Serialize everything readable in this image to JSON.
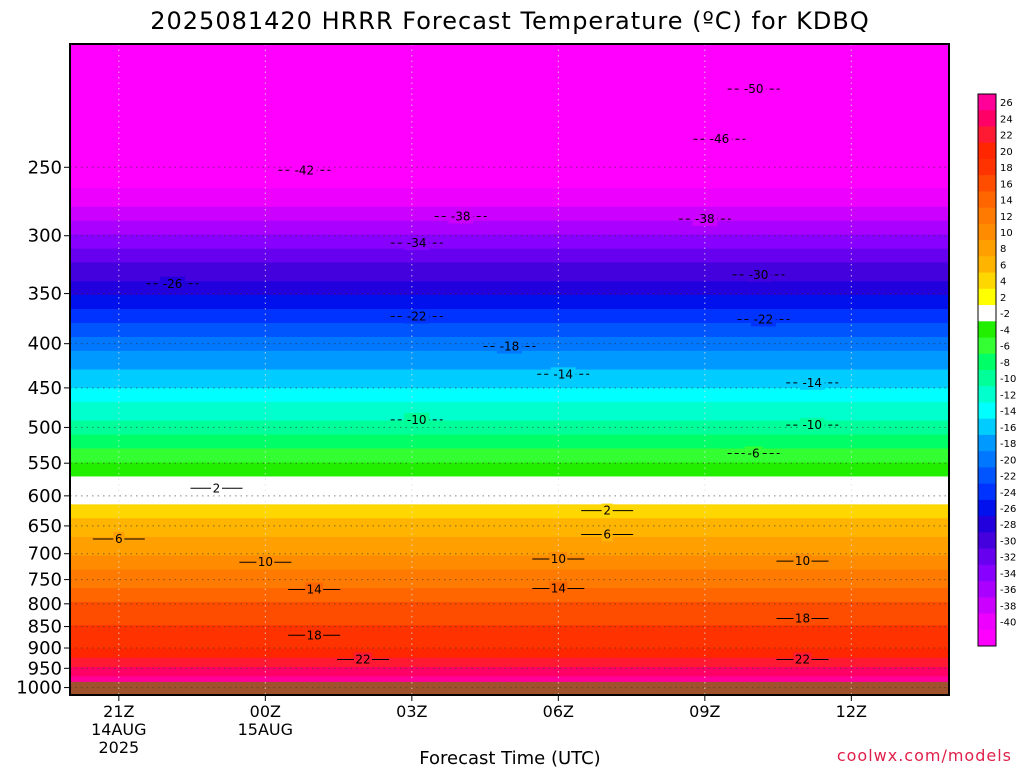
{
  "chart_data": {
    "type": "heatmap",
    "title": "2025081420 HRRR Forecast Temperature (ºC) for KDBQ",
    "xlabel": "Forecast Time (UTC)",
    "ylabel": "",
    "credit": "coolwx.com/models",
    "x_hours": [
      -1,
      17
    ],
    "x_ticks": [
      {
        "hour": 0,
        "label": "21Z",
        "sub1": "14AUG",
        "sub2": "2025"
      },
      {
        "hour": 3,
        "label": "00Z",
        "sub1": "15AUG",
        "sub2": ""
      },
      {
        "hour": 6,
        "label": "03Z",
        "sub1": "",
        "sub2": ""
      },
      {
        "hour": 9,
        "label": "06Z",
        "sub1": "",
        "sub2": ""
      },
      {
        "hour": 12,
        "label": "09Z",
        "sub1": "",
        "sub2": ""
      },
      {
        "hour": 15,
        "label": "12Z",
        "sub1": "",
        "sub2": ""
      }
    ],
    "y_axis": "pressure (hPa), log scale",
    "y_range": [
      1020,
      180
    ],
    "y_ticks": [
      250,
      300,
      350,
      400,
      450,
      500,
      550,
      600,
      650,
      700,
      750,
      800,
      850,
      900,
      950,
      1000
    ],
    "grid": true,
    "surface_pressure": 985,
    "temperature_profile": [
      {
        "p": 975,
        "t": 25
      },
      {
        "p": 950,
        "t": 22
      },
      {
        "p": 900,
        "t": 18
      },
      {
        "p": 850,
        "t": 16
      },
      {
        "p": 800,
        "t": 14
      },
      {
        "p": 750,
        "t": 11
      },
      {
        "p": 700,
        "t": 8
      },
      {
        "p": 650,
        "t": 5
      },
      {
        "p": 600,
        "t": 1
      },
      {
        "p": 550,
        "t": -4
      },
      {
        "p": 500,
        "t": -9
      },
      {
        "p": 450,
        "t": -14
      },
      {
        "p": 400,
        "t": -19
      },
      {
        "p": 350,
        "t": -26
      },
      {
        "p": 300,
        "t": -34
      },
      {
        "p": 250,
        "t": -43
      },
      {
        "p": 200,
        "t": -52
      }
    ],
    "contour_labels": [
      {
        "value": "-50",
        "hour": 13.0,
        "p": 203
      },
      {
        "value": "-46",
        "hour": 12.3,
        "p": 232
      },
      {
        "value": "-42",
        "hour": 3.8,
        "p": 252
      },
      {
        "value": "-38",
        "hour": 7.0,
        "p": 285
      },
      {
        "value": "-38",
        "hour": 12.0,
        "p": 287
      },
      {
        "value": "-34",
        "hour": 6.1,
        "p": 306
      },
      {
        "value": "-30",
        "hour": 13.1,
        "p": 333
      },
      {
        "value": "-26",
        "hour": 1.1,
        "p": 341
      },
      {
        "value": "-22",
        "hour": 6.1,
        "p": 372
      },
      {
        "value": "-22",
        "hour": 13.2,
        "p": 375
      },
      {
        "value": "-18",
        "hour": 8.0,
        "p": 403
      },
      {
        "value": "-14",
        "hour": 9.1,
        "p": 434
      },
      {
        "value": "-14",
        "hour": 14.2,
        "p": 444
      },
      {
        "value": "-10",
        "hour": 6.1,
        "p": 490
      },
      {
        "value": "-10",
        "hour": 14.2,
        "p": 497
      },
      {
        "value": "-6",
        "hour": 13.0,
        "p": 536
      },
      {
        "value": "2",
        "hour": 2.0,
        "p": 588
      },
      {
        "value": "2",
        "hour": 10.0,
        "p": 624
      },
      {
        "value": "6",
        "hour": 0.0,
        "p": 673
      },
      {
        "value": "6",
        "hour": 10.0,
        "p": 665
      },
      {
        "value": "10",
        "hour": 3.0,
        "p": 716
      },
      {
        "value": "10",
        "hour": 9.0,
        "p": 710
      },
      {
        "value": "10",
        "hour": 14.0,
        "p": 714
      },
      {
        "value": "14",
        "hour": 4.0,
        "p": 770
      },
      {
        "value": "14",
        "hour": 9.0,
        "p": 768
      },
      {
        "value": "18",
        "hour": 4.0,
        "p": 870
      },
      {
        "value": "18",
        "hour": 14.0,
        "p": 832
      },
      {
        "value": "22",
        "hour": 5.0,
        "p": 928
      },
      {
        "value": "22",
        "hour": 14.0,
        "p": 928
      }
    ],
    "colorbar": {
      "labels": [
        "26",
        "24",
        "22",
        "20",
        "18",
        "16",
        "14",
        "12",
        "10",
        "8",
        "6",
        "4",
        "2",
        "-2",
        "-4",
        "-6",
        "-8",
        "-10",
        "-12",
        "-14",
        "-16",
        "-18",
        "-20",
        "-22",
        "-24",
        "-26",
        "-28",
        "-30",
        "-32",
        "-34",
        "-36",
        "-38",
        "-40"
      ],
      "colors": [
        "#ff0099",
        "#ff0066",
        "#ff1a33",
        "#ff2600",
        "#ff3300",
        "#ff4d00",
        "#ff6600",
        "#ff7a00",
        "#ff8c00",
        "#ffa000",
        "#ffb400",
        "#ffd700",
        "#ffff00",
        "#ffffff",
        "#22ee00",
        "#33ff33",
        "#00ff66",
        "#00ff99",
        "#00ffcc",
        "#00ffff",
        "#00ccff",
        "#0099ff",
        "#0077ff",
        "#0055ff",
        "#0033ff",
        "#0011ee",
        "#2200dd",
        "#4400dd",
        "#6600ee",
        "#8800ff",
        "#aa00ff",
        "#cc00ff",
        "#ee00ff",
        "#ff00ff"
      ]
    },
    "ground_color": "#a0522d"
  }
}
